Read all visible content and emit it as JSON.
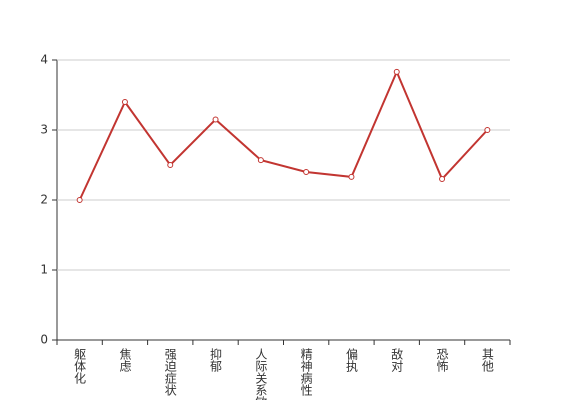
{
  "chart_data": {
    "type": "line",
    "categories": [
      "躯体化",
      "焦虑",
      "强迫症状",
      "抑郁",
      "人际关系敏感",
      "精神病性",
      "偏执",
      "敌对",
      "恐怖",
      "其他"
    ],
    "values": [
      2.0,
      3.4,
      2.5,
      3.15,
      2.57,
      2.4,
      2.33,
      3.83,
      2.3,
      3.0
    ],
    "color": "#c23531",
    "ylim": [
      0,
      4
    ],
    "yticks": [
      0,
      1,
      2,
      3,
      4
    ],
    "grid": true
  }
}
